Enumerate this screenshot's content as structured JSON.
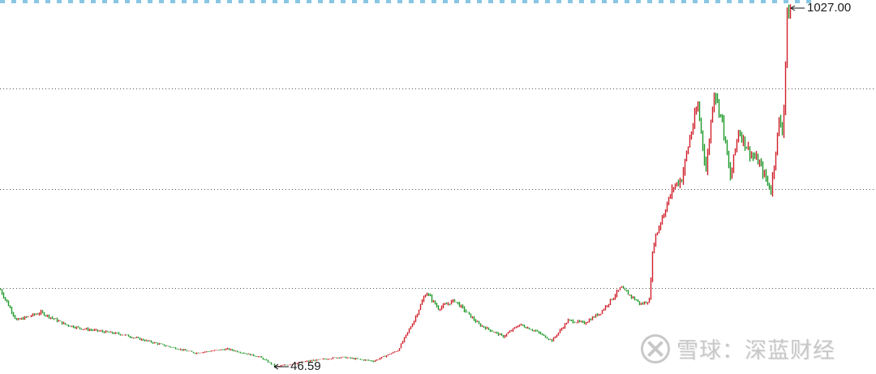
{
  "chart_data": {
    "type": "candlestick",
    "title": "",
    "xlabel": "",
    "ylabel": "",
    "ylim": [
      25,
      1050
    ],
    "grid": true,
    "colors": {
      "up": "#d0202a",
      "down": "#1f9a2a",
      "grid": "#555555"
    },
    "annotations": {
      "high_label": "1027.00",
      "low_label": "46.59"
    },
    "watermark": "雪球：深蓝财经",
    "x": [
      0,
      20,
      50,
      80,
      100,
      150,
      200,
      240,
      280,
      320,
      340,
      380,
      420,
      460,
      490,
      510,
      525,
      540,
      560,
      590,
      620,
      640,
      660,
      680,
      700,
      720,
      740,
      765,
      790,
      800,
      805,
      815,
      830,
      840,
      850,
      860,
      870,
      880,
      890,
      900,
      910,
      925,
      935,
      950,
      960,
      965,
      970,
      975
    ],
    "close": [
      257,
      173,
      195,
      162,
      151,
      135,
      106,
      84,
      95,
      73,
      46.59,
      62,
      73,
      62,
      91,
      173,
      251,
      206,
      228,
      162,
      129,
      162,
      144,
      118,
      173,
      166,
      195,
      262,
      217,
      228,
      384,
      450,
      539,
      561,
      672,
      761,
      583,
      805,
      716,
      561,
      694,
      628,
      606,
      528,
      716,
      694,
      1005,
      1027
    ]
  }
}
